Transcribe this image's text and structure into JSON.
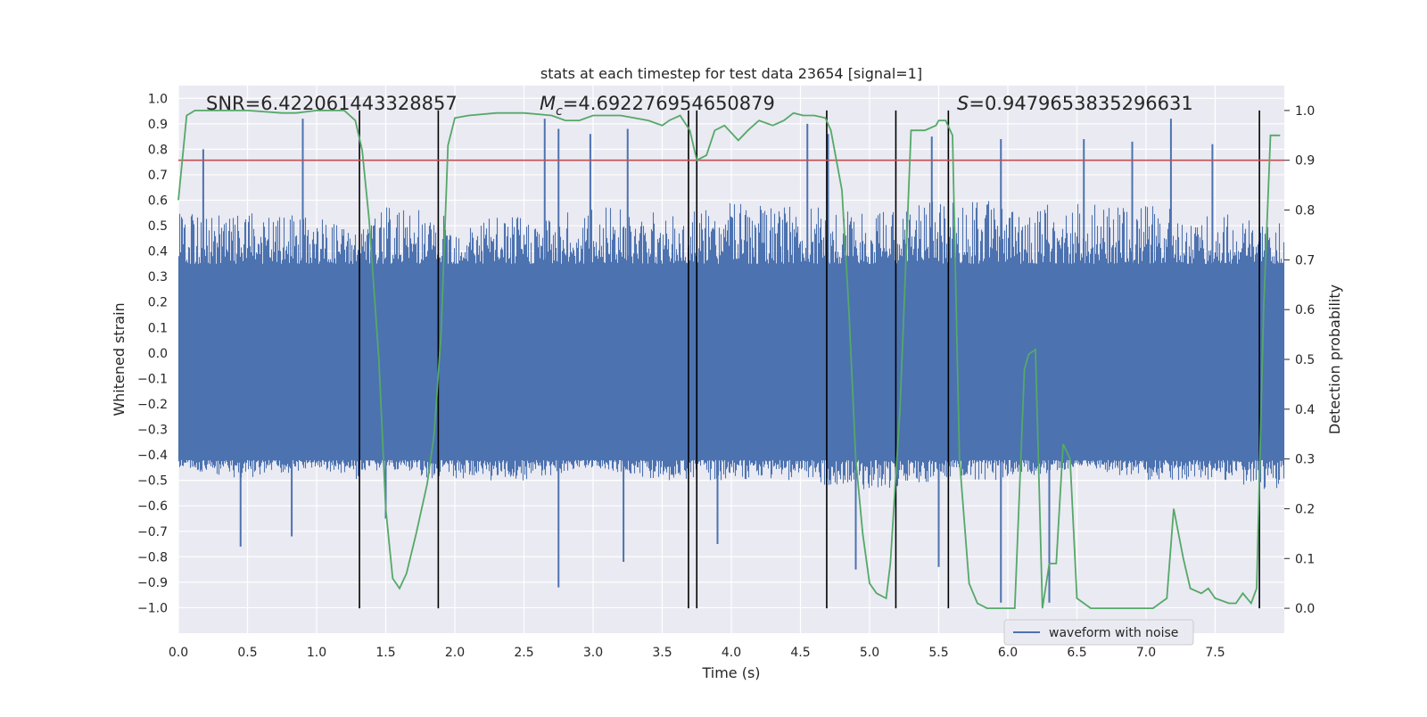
{
  "chart_data": {
    "type": "line",
    "title": "stats at each timestep for test data 23654 [signal=1]",
    "xlabel": "Time (s)",
    "ylabel": "Whitened strain",
    "y2label": "Detection probability",
    "xlim": [
      0.0,
      8.0
    ],
    "ylim": [
      -1.1,
      1.05
    ],
    "y2lim": [
      -0.05,
      1.05
    ],
    "xticks": [
      "0.0",
      "0.5",
      "1.0",
      "1.5",
      "2.0",
      "2.5",
      "3.0",
      "3.5",
      "4.0",
      "4.5",
      "5.0",
      "5.5",
      "6.0",
      "6.5",
      "7.0",
      "7.5"
    ],
    "xtick_values": [
      0.0,
      0.5,
      1.0,
      1.5,
      2.0,
      2.5,
      3.0,
      3.5,
      4.0,
      4.5,
      5.0,
      5.5,
      6.0,
      6.5,
      7.0,
      7.5
    ],
    "yticks": [
      "1.0",
      "0.9",
      "0.8",
      "0.7",
      "0.6",
      "0.5",
      "0.4",
      "0.3",
      "0.2",
      "0.1",
      "0.0",
      "−0.1",
      "−0.2",
      "−0.3",
      "−0.4",
      "−0.5",
      "−0.6",
      "−0.7",
      "−0.8",
      "−0.9",
      "−1.0"
    ],
    "ytick_values": [
      1.0,
      0.9,
      0.8,
      0.7,
      0.6,
      0.5,
      0.4,
      0.3,
      0.2,
      0.1,
      0.0,
      -0.1,
      -0.2,
      -0.3,
      -0.4,
      -0.5,
      -0.6,
      -0.7,
      -0.8,
      -0.9,
      -1.0
    ],
    "y2ticks": [
      "1.0",
      "0.9",
      "0.8",
      "0.7",
      "0.6",
      "0.5",
      "0.4",
      "0.3",
      "0.2",
      "0.1",
      "0.0"
    ],
    "y2tick_values": [
      1.0,
      0.9,
      0.8,
      0.7,
      0.6,
      0.5,
      0.4,
      0.3,
      0.2,
      0.1,
      0.0
    ],
    "stats": {
      "snr": "SNR=6.422061443328857",
      "mc_symbol": "M",
      "mc_sub": "c",
      "mc_value": "=4.692276954650879",
      "s_symbol": "S",
      "s_value": "=0.9479653835296631"
    },
    "legend": {
      "label": "waveform with noise",
      "placement": "lower-right"
    },
    "threshold": {
      "value": 0.9,
      "axis": "right"
    },
    "vlines": [
      1.31,
      1.88,
      3.69,
      3.75,
      4.69,
      5.19,
      5.57,
      7.82
    ],
    "waveform": {
      "name": "waveform with noise",
      "envelope": [
        [
          0.0,
          0.55,
          -0.45
        ],
        [
          0.5,
          0.55,
          -0.5
        ],
        [
          1.0,
          0.55,
          -0.45
        ],
        [
          1.31,
          0.5,
          -0.5
        ],
        [
          1.5,
          0.58,
          -0.45
        ],
        [
          1.88,
          0.55,
          -0.5
        ],
        [
          2.5,
          0.55,
          -0.5
        ],
        [
          3.0,
          0.58,
          -0.45
        ],
        [
          3.5,
          0.55,
          -0.5
        ],
        [
          4.0,
          0.6,
          -0.5
        ],
        [
          4.5,
          0.58,
          -0.5
        ],
        [
          5.0,
          0.55,
          -0.55
        ],
        [
          5.5,
          0.6,
          -0.5
        ],
        [
          6.0,
          0.6,
          -0.5
        ],
        [
          6.5,
          0.6,
          -0.45
        ],
        [
          7.0,
          0.58,
          -0.5
        ],
        [
          7.5,
          0.55,
          -0.5
        ],
        [
          8.0,
          0.52,
          -0.55
        ]
      ],
      "spikes": [
        [
          0.18,
          0.8
        ],
        [
          0.9,
          0.92
        ],
        [
          2.65,
          0.92
        ],
        [
          2.75,
          0.88
        ],
        [
          2.98,
          0.86
        ],
        [
          3.25,
          0.88
        ],
        [
          4.55,
          0.9
        ],
        [
          4.7,
          0.86
        ],
        [
          5.45,
          0.85
        ],
        [
          5.95,
          0.84
        ],
        [
          6.55,
          0.84
        ],
        [
          6.9,
          0.83
        ],
        [
          7.18,
          0.92
        ],
        [
          7.48,
          0.82
        ],
        [
          0.45,
          -0.76
        ],
        [
          0.82,
          -0.72
        ],
        [
          2.75,
          -0.92
        ],
        [
          3.22,
          -0.82
        ],
        [
          3.9,
          -0.75
        ],
        [
          4.9,
          -0.85
        ],
        [
          5.5,
          -0.84
        ],
        [
          6.3,
          -0.98
        ],
        [
          5.95,
          -0.98
        ],
        [
          1.5,
          -0.65
        ]
      ]
    },
    "series": [
      {
        "name": "Detection probability",
        "axis": "right",
        "x": [
          0.0,
          0.06,
          0.12,
          0.25,
          0.5,
          0.75,
          0.85,
          1.0,
          1.2,
          1.28,
          1.33,
          1.38,
          1.45,
          1.5,
          1.55,
          1.6,
          1.65,
          1.72,
          1.8,
          1.85,
          1.9,
          1.95,
          2.0,
          2.1,
          2.3,
          2.5,
          2.7,
          2.8,
          2.9,
          3.0,
          3.1,
          3.2,
          3.4,
          3.5,
          3.55,
          3.63,
          3.7,
          3.75,
          3.82,
          3.88,
          3.95,
          4.05,
          4.12,
          4.2,
          4.3,
          4.38,
          4.45,
          4.52,
          4.6,
          4.68,
          4.72,
          4.8,
          4.85,
          4.9,
          4.95,
          5.0,
          5.05,
          5.12,
          5.15,
          5.22,
          5.3,
          5.4,
          5.48,
          5.5,
          5.55,
          5.6,
          5.65,
          5.72,
          5.78,
          5.85,
          5.95,
          6.05,
          6.12,
          6.15,
          6.2,
          6.25,
          6.3,
          6.35,
          6.4,
          6.45,
          6.5,
          6.6,
          6.8,
          7.0,
          7.05,
          7.15,
          7.2,
          7.27,
          7.32,
          7.4,
          7.45,
          7.5,
          7.6,
          7.65,
          7.7,
          7.76,
          7.8,
          7.85,
          7.9,
          7.97
        ],
        "y": [
          0.82,
          0.99,
          1.0,
          1.0,
          1.0,
          0.995,
          0.995,
          1.0,
          1.0,
          0.98,
          0.92,
          0.78,
          0.5,
          0.2,
          0.06,
          0.04,
          0.07,
          0.15,
          0.25,
          0.35,
          0.55,
          0.93,
          0.985,
          0.99,
          0.995,
          0.995,
          0.99,
          0.98,
          0.98,
          0.99,
          0.99,
          0.99,
          0.98,
          0.97,
          0.98,
          0.99,
          0.96,
          0.9,
          0.91,
          0.96,
          0.97,
          0.94,
          0.96,
          0.98,
          0.97,
          0.98,
          0.995,
          0.99,
          0.99,
          0.985,
          0.96,
          0.84,
          0.6,
          0.3,
          0.15,
          0.05,
          0.03,
          0.02,
          0.09,
          0.4,
          0.96,
          0.96,
          0.97,
          0.98,
          0.98,
          0.95,
          0.3,
          0.05,
          0.01,
          0.0,
          0.0,
          0.0,
          0.48,
          0.51,
          0.52,
          0.0,
          0.09,
          0.09,
          0.33,
          0.3,
          0.02,
          0.0,
          0.0,
          0.0,
          0.0,
          0.02,
          0.2,
          0.1,
          0.04,
          0.03,
          0.04,
          0.02,
          0.01,
          0.01,
          0.03,
          0.01,
          0.04,
          0.6,
          0.95,
          0.95
        ]
      }
    ]
  }
}
